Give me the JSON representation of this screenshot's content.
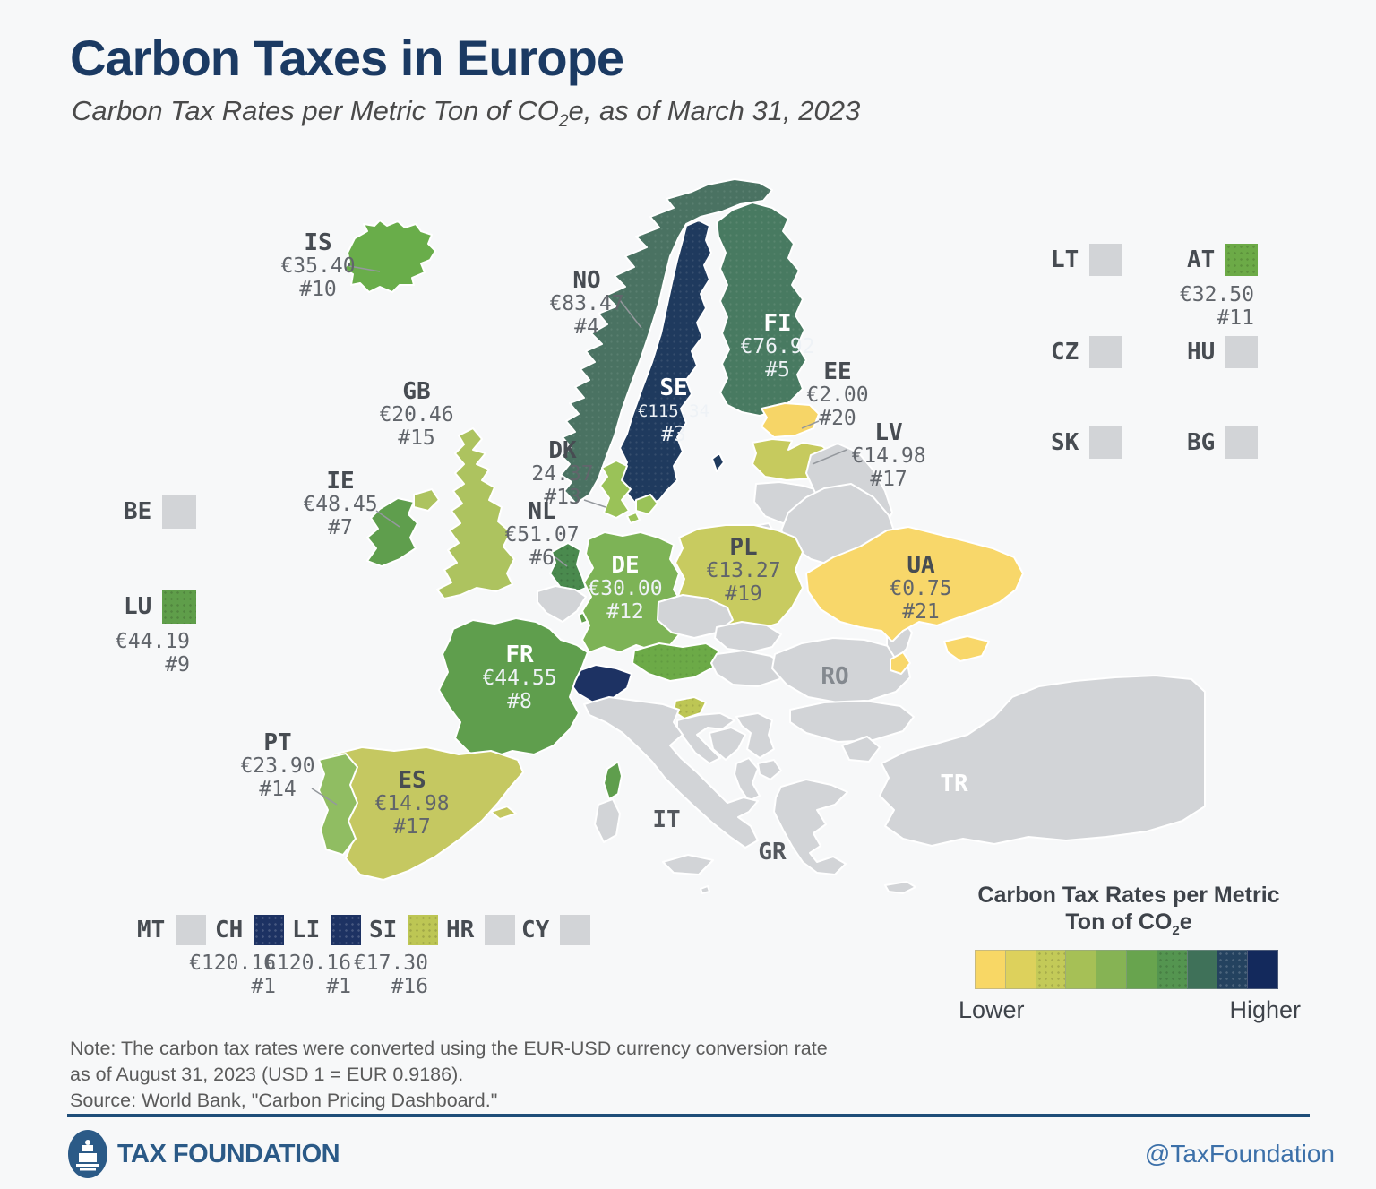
{
  "title": "Carbon Taxes in Europe",
  "subtitle_pre": "Carbon Tax Rates per Metric Ton of CO",
  "subtitle_sub": "2",
  "subtitle_post": "e, as of March 31, 2023",
  "countries": {
    "IS": {
      "code": "IS",
      "value": "€35.40",
      "rank": "#10",
      "color": "#69ad4a"
    },
    "NO": {
      "code": "NO",
      "value": "€83.47",
      "rank": "#4",
      "color": "#4a7262"
    },
    "SE": {
      "code": "SE",
      "value": "€115.34",
      "rank": "#3",
      "color": "#1f3a5e"
    },
    "FI": {
      "code": "FI",
      "value": "€76.92",
      "rank": "#5",
      "color": "#487a61"
    },
    "EE": {
      "code": "EE",
      "value": "€2.00",
      "rank": "#20",
      "color": "#f6d567"
    },
    "LV": {
      "code": "LV",
      "value": "€14.98",
      "rank": "#17",
      "color": "#c6ca5e"
    },
    "LT": {
      "code": "LT",
      "color": "#d2d4d7"
    },
    "DK": {
      "code": "DK",
      "value": "24.37",
      "rank": "#13",
      "color": "#9ac258"
    },
    "GB": {
      "code": "GB",
      "value": "€20.46",
      "rank": "#15",
      "color": "#adc35f"
    },
    "IE": {
      "code": "IE",
      "value": "€48.45",
      "rank": "#7",
      "color": "#5f9e4d"
    },
    "NL": {
      "code": "NL",
      "value": "€51.07",
      "rank": "#6",
      "color": "#4a8a4e"
    },
    "BE": {
      "code": "BE",
      "color": "#d2d4d7"
    },
    "LU": {
      "code": "LU",
      "value": "€44.19",
      "rank": "#9",
      "color": "#5f9e4a"
    },
    "DE": {
      "code": "DE",
      "value": "€30.00",
      "rank": "#12",
      "color": "#7db356"
    },
    "PL": {
      "code": "PL",
      "value": "€13.27",
      "rank": "#19",
      "color": "#c8cb60"
    },
    "CZ": {
      "code": "CZ",
      "color": "#d2d4d7"
    },
    "SK": {
      "code": "SK",
      "color": "#d2d4d7"
    },
    "AT": {
      "code": "AT",
      "value": "€32.50",
      "rank": "#11",
      "color": "#6caa47"
    },
    "HU": {
      "code": "HU",
      "color": "#d2d4d7"
    },
    "CH": {
      "code": "CH",
      "value": "€120.16",
      "rank": "#1",
      "color": "#1d3263"
    },
    "LI": {
      "code": "LI",
      "value": "€120.16",
      "rank": "#1",
      "color": "#1d3263"
    },
    "SI": {
      "code": "SI",
      "value": "€17.30",
      "rank": "#16",
      "color": "#bdc654"
    },
    "HR": {
      "code": "HR",
      "color": "#d2d4d7"
    },
    "FR": {
      "code": "FR",
      "value": "€44.55",
      "rank": "#8",
      "color": "#5f9e4d"
    },
    "PT": {
      "code": "PT",
      "value": "€23.90",
      "rank": "#14",
      "color": "#90bd62"
    },
    "ES": {
      "code": "ES",
      "value": "€14.98",
      "rank": "#17",
      "color": "#c5c861"
    },
    "UA": {
      "code": "UA",
      "value": "€0.75",
      "rank": "#21",
      "color": "#f8d76a"
    },
    "IT": {
      "code": "IT",
      "color": "#d2d4d7"
    },
    "GR": {
      "code": "GR",
      "color": "#d2d4d7"
    },
    "RO": {
      "code": "RO",
      "color": "#d2d4d7"
    },
    "TR": {
      "code": "TR",
      "color": "#d2d4d7"
    },
    "BG": {
      "code": "BG",
      "color": "#d2d4d7"
    },
    "MT": {
      "code": "MT",
      "color": "#d2d4d7"
    },
    "CY": {
      "code": "CY",
      "color": "#d2d4d7"
    }
  },
  "legend": {
    "title_line1": "Carbon Tax Rates per Metric",
    "title_line2_pre": "Ton of CO",
    "title_sub": "2",
    "title_post": "e",
    "lower": "Lower",
    "higher": "Higher",
    "colors": [
      "#f8d765",
      "#ddd15c",
      "#c3ca58",
      "#a6c056",
      "#86b354",
      "#68a44e",
      "#549550",
      "#3f7159",
      "#24425f",
      "#13295c"
    ]
  },
  "note": {
    "line1": "Note: The carbon tax rates were converted using the EUR-USD currency conversion rate",
    "line2": "as of August 31, 2023 (USD 1 = EUR 0.9186).",
    "line3": "Source: World Bank, \"Carbon Pricing Dashboard.\""
  },
  "footer": {
    "brand": "TAX FOUNDATION",
    "handle": "@TaxFoundation"
  }
}
